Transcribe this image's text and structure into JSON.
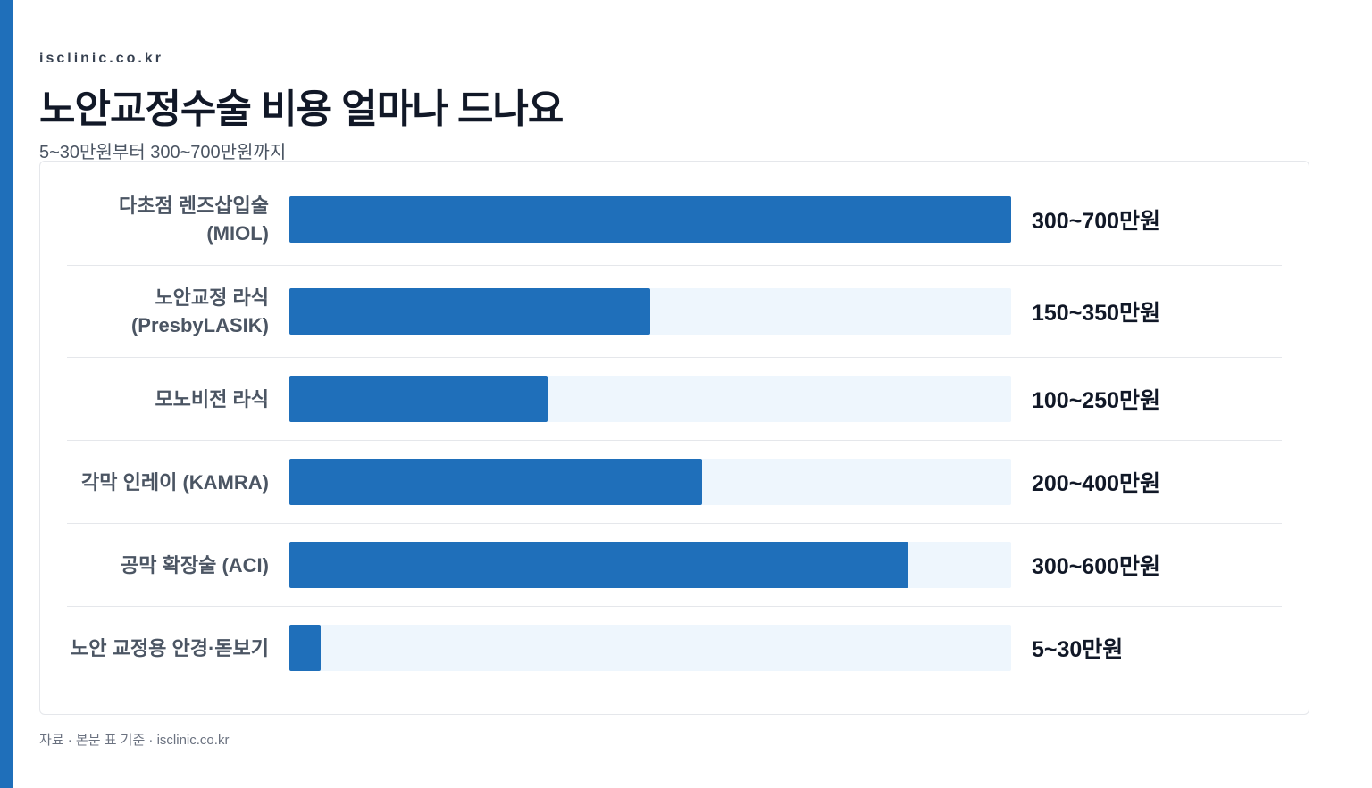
{
  "chart_data": {
    "type": "bar",
    "orientation": "horizontal",
    "site": "isclinic.co.kr",
    "title": "노안교정수술 비용 얼마나 드나요",
    "subtitle": "5~30만원부터 300~700만원까지",
    "categories": [
      "다초점 렌즈삽입술 (MIOL)",
      "노안교정 라식 (PresbyLASIK)",
      "모노비전 라식",
      "각막 인레이 (KAMRA)",
      "공막 확장술 (ACI)",
      "노안 교정용 안경·돋보기"
    ],
    "values": [
      700,
      350,
      250,
      400,
      600,
      30
    ],
    "value_labels": [
      "300~700만원",
      "150~350만원",
      "100~250만원",
      "200~400만원",
      "300~600만원",
      "5~30만원"
    ],
    "xlim": [
      0,
      700
    ],
    "color": "#1f6fba",
    "track_color": "#eef6fd",
    "note": "자료 · 본문 표 기준 · isclinic.co.kr"
  }
}
